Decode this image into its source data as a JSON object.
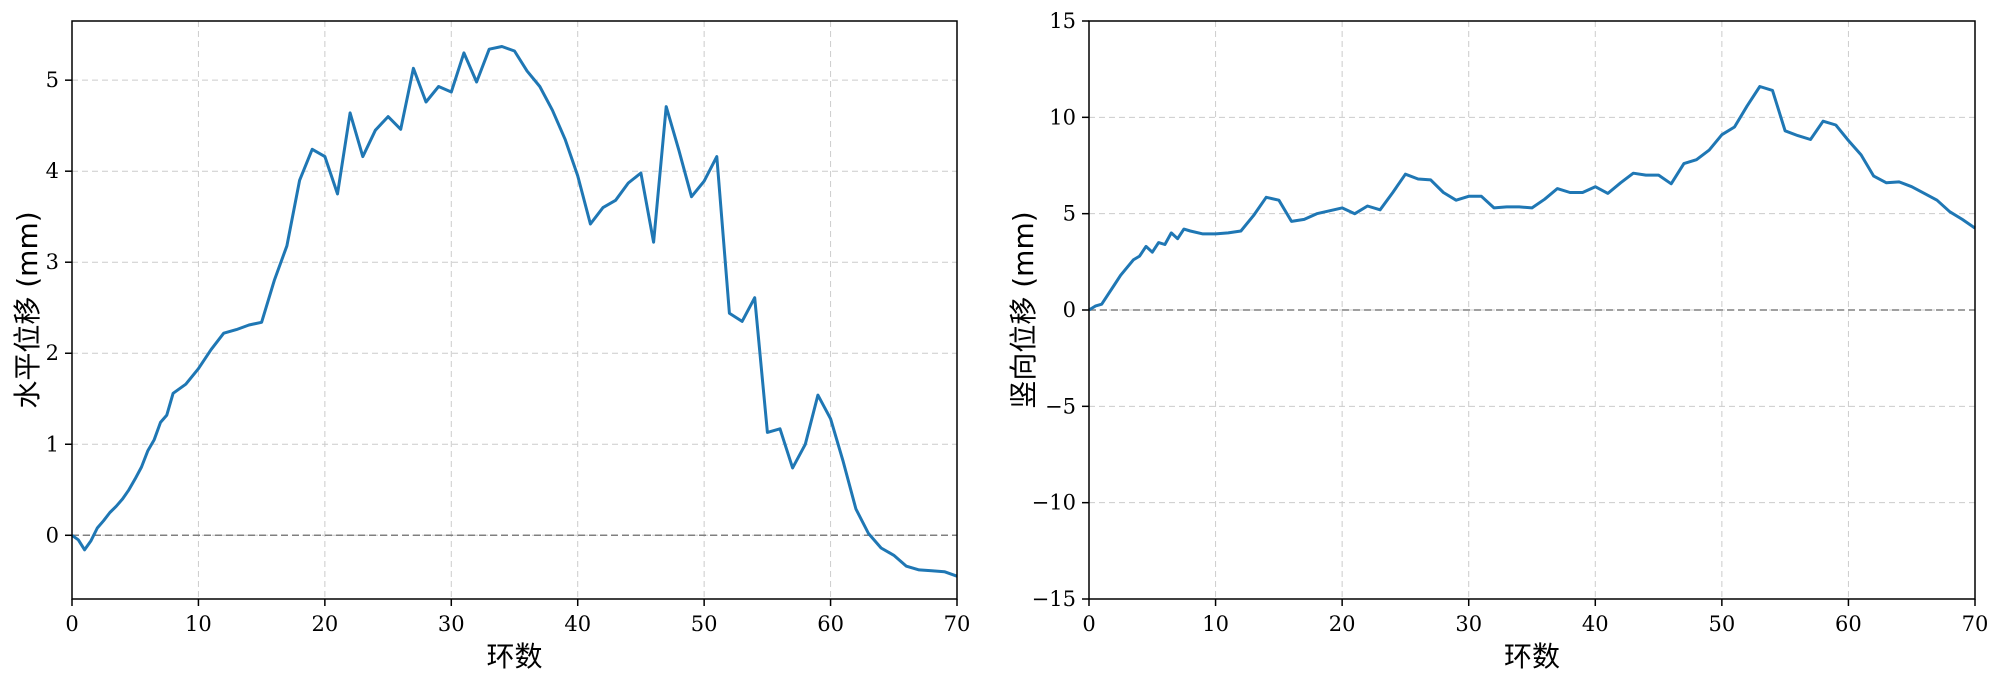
{
  "chart_data": [
    {
      "type": "line",
      "xlabel": "环数",
      "ylabel": "水平位移 (mm)",
      "xlim": [
        0,
        70
      ],
      "ylim": [
        -0.7,
        5.65
      ],
      "xticks": [
        0,
        10,
        20,
        30,
        40,
        50,
        60,
        70
      ],
      "yticks": [
        0,
        1,
        2,
        3,
        4,
        5
      ],
      "ytick_labels": [
        "0",
        "1",
        "2",
        "3",
        "4",
        "5"
      ],
      "grid": true,
      "reference_line": 0,
      "color": "#1f77b4",
      "x": [
        0,
        0.5,
        1,
        1.5,
        2,
        2.5,
        3,
        3.5,
        4,
        4.5,
        5,
        5.5,
        6,
        6.5,
        7,
        7.5,
        8,
        9,
        10,
        11,
        12,
        13,
        14,
        15,
        16,
        17,
        18,
        19,
        20,
        21,
        22,
        23,
        24,
        25,
        26,
        27,
        28,
        29,
        30,
        31,
        32,
        33,
        34,
        35,
        36,
        37,
        38,
        39,
        40,
        41,
        42,
        43,
        44,
        45,
        46,
        47,
        48,
        49,
        50,
        51,
        52,
        53,
        54,
        55,
        56,
        57,
        58,
        59,
        60,
        61,
        62,
        63,
        64,
        65,
        66,
        67,
        68,
        69,
        70
      ],
      "y": [
        0,
        -0.05,
        -0.16,
        -0.06,
        0.08,
        0.16,
        0.25,
        0.32,
        0.4,
        0.5,
        0.62,
        0.75,
        0.93,
        1.05,
        1.24,
        1.32,
        1.56,
        1.66,
        1.83,
        2.04,
        2.22,
        2.26,
        2.31,
        2.34,
        2.8,
        3.18,
        3.9,
        4.24,
        4.16,
        3.75,
        4.64,
        4.16,
        4.45,
        4.6,
        4.46,
        5.13,
        4.76,
        4.93,
        4.87,
        5.3,
        4.98,
        5.34,
        5.37,
        5.32,
        5.1,
        4.93,
        4.67,
        4.35,
        3.95,
        3.42,
        3.6,
        3.68,
        3.87,
        3.98,
        3.22,
        4.71,
        4.23,
        3.72,
        3.89,
        4.16,
        2.44,
        2.35,
        2.61,
        1.13,
        1.17,
        0.74,
        1.0,
        1.54,
        1.28,
        0.81,
        0.29,
        0.02,
        -0.14,
        -0.22,
        -0.34,
        -0.38,
        -0.39,
        -0.4,
        -0.45
      ]
    },
    {
      "type": "line",
      "xlabel": "环数",
      "ylabel": "竖向位移 (mm)",
      "xlim": [
        0,
        70
      ],
      "ylim": [
        -15,
        15
      ],
      "xticks": [
        0,
        10,
        20,
        30,
        40,
        50,
        60,
        70
      ],
      "yticks": [
        -15,
        -10,
        -5,
        0,
        5,
        10,
        15
      ],
      "ytick_labels": [
        "−15",
        "−10",
        "−5",
        "0",
        "5",
        "10",
        "15"
      ],
      "grid": true,
      "reference_line": 0,
      "color": "#1f77b4",
      "x": [
        0,
        0.5,
        1,
        1.5,
        2,
        2.5,
        3,
        3.5,
        4,
        4.5,
        5,
        5.5,
        6,
        6.5,
        7,
        7.5,
        8,
        9,
        10,
        11,
        12,
        13,
        14,
        15,
        16,
        17,
        18,
        19,
        20,
        21,
        22,
        23,
        24,
        25,
        26,
        27,
        28,
        29,
        30,
        31,
        32,
        33,
        34,
        35,
        36,
        37,
        38,
        39,
        40,
        41,
        42,
        43,
        44,
        45,
        46,
        47,
        48,
        49,
        50,
        51,
        52,
        53,
        54,
        55,
        56,
        57,
        58,
        59,
        60,
        61,
        62,
        63,
        64,
        65,
        66,
        67,
        68,
        69,
        70
      ],
      "y": [
        0,
        0.2,
        0.3,
        0.8,
        1.3,
        1.8,
        2.2,
        2.6,
        2.8,
        3.3,
        3.0,
        3.5,
        3.4,
        4.0,
        3.7,
        4.2,
        4.1,
        3.95,
        3.95,
        4.0,
        4.1,
        4.9,
        5.85,
        5.7,
        4.6,
        4.7,
        5.0,
        5.15,
        5.3,
        5.0,
        5.4,
        5.2,
        6.1,
        7.05,
        6.8,
        6.75,
        6.1,
        5.7,
        5.9,
        5.9,
        5.3,
        5.35,
        5.35,
        5.3,
        5.75,
        6.3,
        6.1,
        6.1,
        6.4,
        6.05,
        6.6,
        7.1,
        7.0,
        7.0,
        6.55,
        7.6,
        7.8,
        8.3,
        9.1,
        9.5,
        10.6,
        11.6,
        11.4,
        9.3,
        9.05,
        8.85,
        9.8,
        9.6,
        8.8,
        8.05,
        6.95,
        6.6,
        6.65,
        6.4,
        6.05,
        5.7,
        5.1,
        4.7,
        4.25
      ]
    }
  ]
}
